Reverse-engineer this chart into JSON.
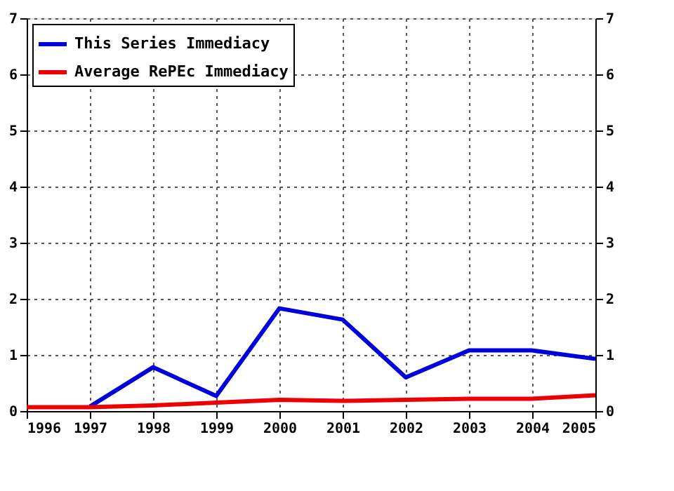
{
  "chart_data": {
    "type": "line",
    "x": [
      1996,
      1997,
      1998,
      1999,
      2000,
      2001,
      2002,
      2003,
      2004,
      2005
    ],
    "series": [
      {
        "name": "This Series Immediacy",
        "color": "#0000dd",
        "values": [
          null,
          0.08,
          0.78,
          0.27,
          1.83,
          1.63,
          0.6,
          1.08,
          1.08,
          0.93
        ]
      },
      {
        "name": "Average RePEc Immediacy",
        "color": "#ee0000",
        "values": [
          0.07,
          0.07,
          0.1,
          0.15,
          0.2,
          0.18,
          0.2,
          0.22,
          0.22,
          0.28
        ]
      }
    ],
    "xlim": [
      1996,
      2005
    ],
    "xticks": [
      1996,
      1997,
      1998,
      1999,
      2000,
      2001,
      2002,
      2003,
      2004,
      2005
    ],
    "ylim": [
      0,
      7
    ],
    "yticks": [
      0,
      1,
      2,
      3,
      4,
      5,
      6,
      7
    ],
    "y2lim": [
      0,
      7
    ],
    "y2ticks": [
      0,
      1,
      2,
      3,
      4,
      5,
      6,
      7
    ],
    "grid": true,
    "legend": "top left",
    "marker": "none",
    "line_style": "solid"
  }
}
